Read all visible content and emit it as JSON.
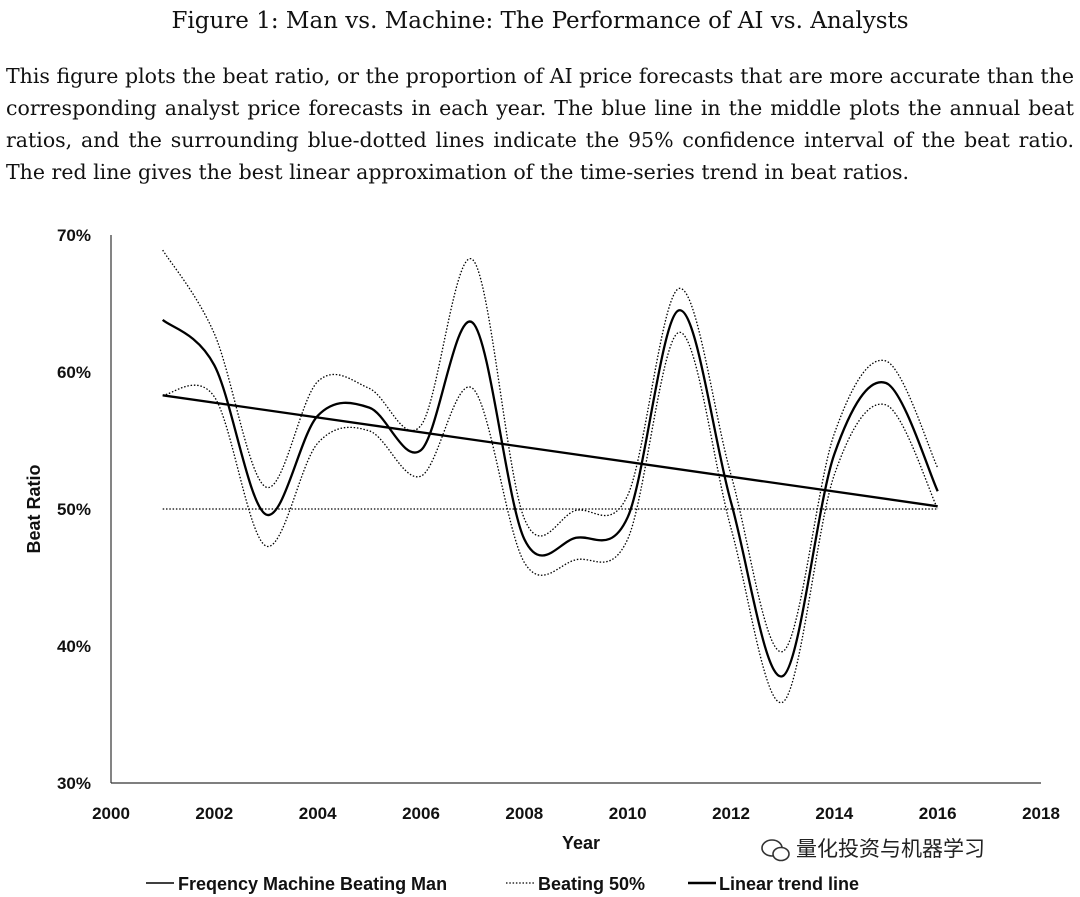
{
  "figure": {
    "title": "Figure 1: Man vs. Machine: The Performance of AI vs. Analysts",
    "caption": "This figure plots the beat ratio, or the proportion of AI price forecasts that are more accurate than the corresponding analyst price forecasts in each year. The blue line in the middle plots the annual beat ratios, and the surrounding blue-dotted lines indicate the 95% confidence interval of the beat ratio. The red line gives the best linear approximation of the time-series trend in beat ratios."
  },
  "watermark": {
    "text": "量化投资与机器学习",
    "icon": "wechat-icon"
  },
  "chart_data": {
    "type": "line",
    "xlabel": "Year",
    "ylabel": "Beat Ratio",
    "xlim": [
      2000,
      2018
    ],
    "ylim": [
      30,
      70
    ],
    "x_ticks": [
      "2000",
      "2002",
      "2004",
      "2006",
      "2008",
      "2010",
      "2012",
      "2014",
      "2016",
      "2018"
    ],
    "y_ticks": [
      "30%",
      "40%",
      "50%",
      "60%",
      "70%"
    ],
    "x": [
      2001,
      2002,
      2003,
      2004,
      2005,
      2006,
      2007,
      2008,
      2009,
      2010,
      2011,
      2012,
      2013,
      2014,
      2015,
      2016
    ],
    "series": [
      {
        "name": "Freqency Machine Beating Man",
        "style": "solid",
        "values": [
          63.8,
          60.5,
          49.6,
          56.8,
          57.4,
          54.3,
          63.6,
          47.8,
          47.9,
          49.4,
          64.5,
          50.5,
          37.8,
          54.0,
          59.2,
          51.3
        ]
      },
      {
        "name": "",
        "style": "dotted",
        "role": "upper 95% confidence",
        "values": [
          68.9,
          62.8,
          51.6,
          59.3,
          58.8,
          56.1,
          68.2,
          49.3,
          49.9,
          51.0,
          66.1,
          52.5,
          39.6,
          55.5,
          60.8,
          53.0
        ]
      },
      {
        "name": "",
        "style": "dotted",
        "role": "lower 95% confidence",
        "values": [
          58.3,
          58.2,
          47.3,
          54.8,
          55.7,
          52.4,
          58.8,
          46.1,
          46.3,
          47.8,
          62.9,
          48.6,
          35.9,
          52.5,
          57.6,
          50.0
        ]
      },
      {
        "name": "Beating 50%",
        "style": "dotted",
        "x": [
          2001,
          2016
        ],
        "values": [
          50.0,
          50.0
        ]
      },
      {
        "name": "Linear trend line",
        "style": "solid",
        "x": [
          2001,
          2016
        ],
        "values": [
          58.3,
          50.2
        ]
      }
    ],
    "legend": [
      "Freqency Machine Beating Man",
      "Beating 50%",
      "Linear trend line"
    ],
    "legend_position": "bottom",
    "grid": false,
    "colors": {
      "line": "#000000",
      "text": "#111111"
    }
  }
}
